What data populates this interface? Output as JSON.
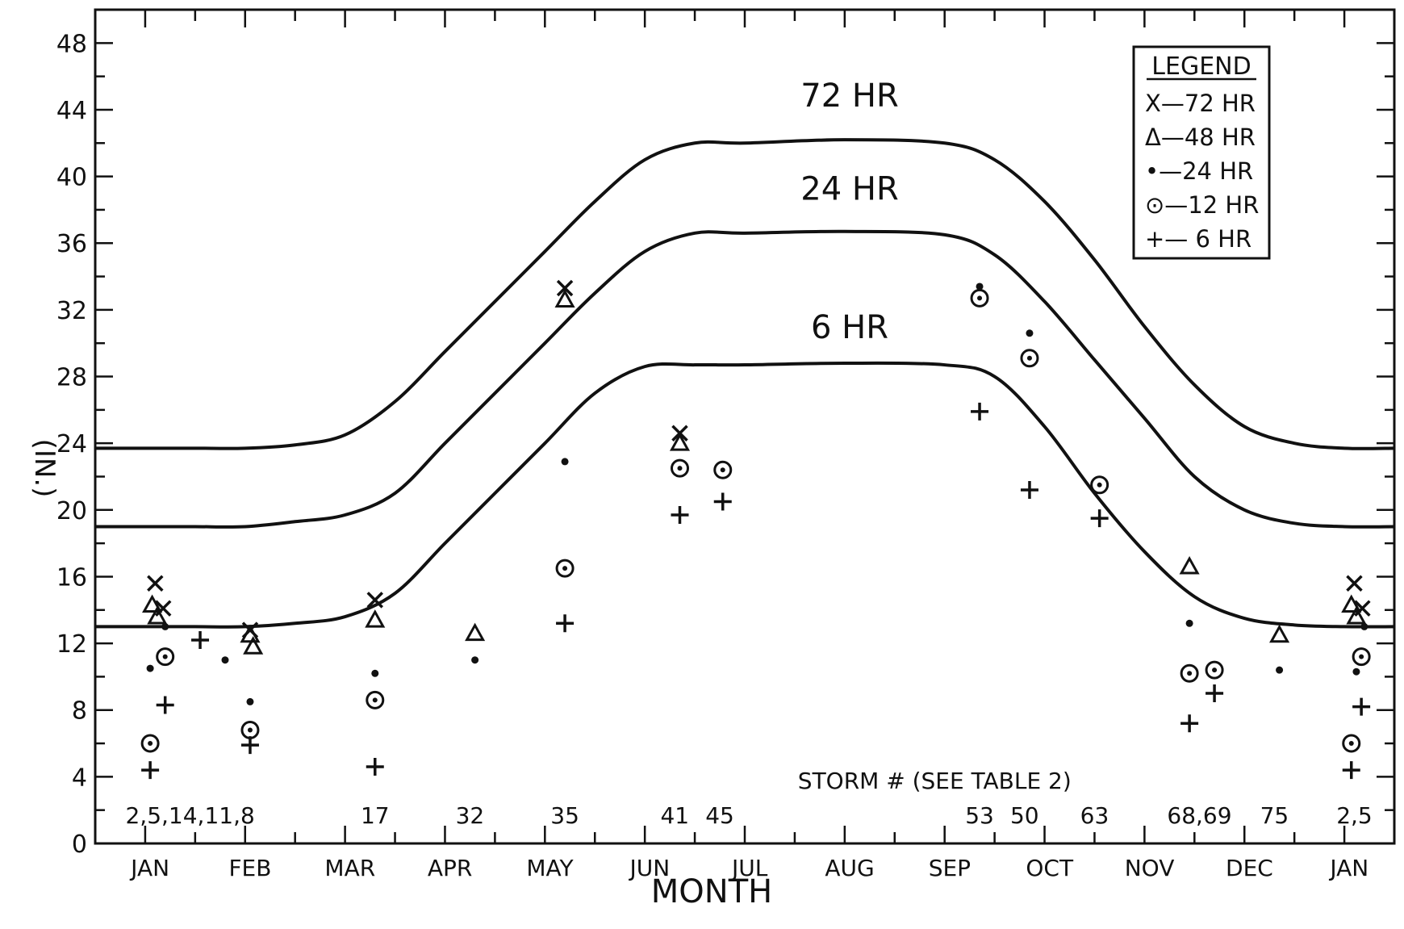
{
  "chart_data": {
    "type": "line",
    "xlabel": "MONTH",
    "ylabel": "(IN.)",
    "ylim": [
      0,
      50
    ],
    "yticks": [
      0,
      4,
      8,
      12,
      16,
      20,
      24,
      28,
      32,
      36,
      40,
      44,
      48
    ],
    "month_labels": [
      "JAN",
      "FEB",
      "MAR",
      "APR",
      "MAY",
      "JUN",
      "JUL",
      "AUG",
      "SEP",
      "OCT",
      "NOV",
      "DEC",
      "JAN"
    ],
    "note": "x values in months; 0.0 = start of January, 12.0 = start of following January",
    "xlim": [
      -0.5,
      12.5
    ],
    "curves": [
      {
        "name": "72 HR",
        "label": "72 HR",
        "x": [
          -0.5,
          0.0,
          0.5,
          1.0,
          1.5,
          2.0,
          2.5,
          3.0,
          3.5,
          4.0,
          4.5,
          5.0,
          5.5,
          6.0,
          7.0,
          8.0,
          8.5,
          9.0,
          9.5,
          10.0,
          10.5,
          11.0,
          11.5,
          12.0,
          12.5
        ],
        "y": [
          23.7,
          23.7,
          23.7,
          23.7,
          23.9,
          24.5,
          26.5,
          29.5,
          32.5,
          35.5,
          38.5,
          41.0,
          42.0,
          42.0,
          42.2,
          42.0,
          41.0,
          38.5,
          35.0,
          31.0,
          27.5,
          25.0,
          24.0,
          23.7,
          23.7
        ]
      },
      {
        "name": "24 HR",
        "label": "24 HR",
        "x": [
          -0.5,
          0.0,
          0.5,
          1.0,
          1.5,
          2.0,
          2.5,
          3.0,
          3.5,
          4.0,
          4.5,
          5.0,
          5.5,
          6.0,
          7.0,
          8.0,
          8.5,
          9.0,
          9.5,
          10.0,
          10.5,
          11.0,
          11.5,
          12.0,
          12.5
        ],
        "y": [
          19.0,
          19.0,
          19.0,
          19.0,
          19.3,
          19.7,
          21.0,
          24.0,
          27.0,
          30.0,
          33.0,
          35.5,
          36.6,
          36.6,
          36.7,
          36.5,
          35.3,
          32.5,
          29.0,
          25.5,
          22.0,
          20.0,
          19.2,
          19.0,
          19.0
        ]
      },
      {
        "name": "6 HR",
        "label": "6 HR",
        "x": [
          -0.5,
          0.0,
          0.5,
          1.0,
          1.5,
          2.0,
          2.5,
          3.0,
          3.5,
          4.0,
          4.5,
          5.0,
          5.5,
          6.0,
          7.0,
          8.0,
          8.5,
          9.0,
          9.5,
          10.0,
          10.5,
          11.0,
          11.5,
          12.0,
          12.5
        ],
        "y": [
          13.0,
          13.0,
          13.0,
          13.0,
          13.2,
          13.6,
          15.0,
          18.0,
          21.0,
          24.0,
          27.0,
          28.6,
          28.7,
          28.7,
          28.8,
          28.7,
          28.0,
          25.0,
          21.0,
          17.5,
          14.8,
          13.5,
          13.1,
          13.0,
          13.0
        ]
      }
    ],
    "points": [
      {
        "x": 0.1,
        "y": 15.6,
        "marker": "x"
      },
      {
        "x": 0.18,
        "y": 14.1,
        "marker": "x"
      },
      {
        "x": 0.07,
        "y": 14.3,
        "marker": "triangle"
      },
      {
        "x": 0.12,
        "y": 13.6,
        "marker": "triangle"
      },
      {
        "x": 0.2,
        "y": 13.0,
        "marker": "dot"
      },
      {
        "x": 0.05,
        "y": 10.5,
        "marker": "dot"
      },
      {
        "x": 0.2,
        "y": 11.2,
        "marker": "circle"
      },
      {
        "x": 0.05,
        "y": 6.0,
        "marker": "circle"
      },
      {
        "x": 0.2,
        "y": 8.3,
        "marker": "plus"
      },
      {
        "x": 0.05,
        "y": 4.4,
        "marker": "plus"
      },
      {
        "x": 0.55,
        "y": 12.2,
        "marker": "plus"
      },
      {
        "x": 0.8,
        "y": 11.0,
        "marker": "dot"
      },
      {
        "x": 1.05,
        "y": 12.8,
        "marker": "x"
      },
      {
        "x": 1.05,
        "y": 12.5,
        "marker": "triangle"
      },
      {
        "x": 1.08,
        "y": 11.8,
        "marker": "triangle"
      },
      {
        "x": 1.05,
        "y": 8.5,
        "marker": "dot"
      },
      {
        "x": 1.05,
        "y": 6.8,
        "marker": "circle"
      },
      {
        "x": 1.05,
        "y": 5.9,
        "marker": "plus"
      },
      {
        "x": 2.3,
        "y": 14.6,
        "marker": "x"
      },
      {
        "x": 2.3,
        "y": 13.4,
        "marker": "triangle"
      },
      {
        "x": 2.3,
        "y": 10.2,
        "marker": "dot"
      },
      {
        "x": 2.3,
        "y": 8.6,
        "marker": "circle"
      },
      {
        "x": 2.3,
        "y": 4.6,
        "marker": "plus"
      },
      {
        "x": 3.3,
        "y": 12.6,
        "marker": "triangle"
      },
      {
        "x": 3.3,
        "y": 11.0,
        "marker": "dot"
      },
      {
        "x": 4.2,
        "y": 33.3,
        "marker": "x"
      },
      {
        "x": 4.2,
        "y": 32.6,
        "marker": "triangle"
      },
      {
        "x": 4.2,
        "y": 22.9,
        "marker": "dot"
      },
      {
        "x": 4.2,
        "y": 16.5,
        "marker": "circle"
      },
      {
        "x": 4.2,
        "y": 13.2,
        "marker": "plus"
      },
      {
        "x": 5.35,
        "y": 24.6,
        "marker": "x"
      },
      {
        "x": 5.35,
        "y": 24.0,
        "marker": "triangle"
      },
      {
        "x": 5.35,
        "y": 22.5,
        "marker": "circle"
      },
      {
        "x": 5.35,
        "y": 19.7,
        "marker": "plus"
      },
      {
        "x": 5.78,
        "y": 22.4,
        "marker": "circle"
      },
      {
        "x": 5.78,
        "y": 20.5,
        "marker": "plus"
      },
      {
        "x": 8.35,
        "y": 33.4,
        "marker": "dot"
      },
      {
        "x": 8.35,
        "y": 32.7,
        "marker": "circle"
      },
      {
        "x": 8.35,
        "y": 25.9,
        "marker": "plus"
      },
      {
        "x": 8.85,
        "y": 30.6,
        "marker": "dot"
      },
      {
        "x": 8.85,
        "y": 29.1,
        "marker": "circle"
      },
      {
        "x": 8.85,
        "y": 21.2,
        "marker": "plus"
      },
      {
        "x": 9.55,
        "y": 21.5,
        "marker": "circle"
      },
      {
        "x": 9.55,
        "y": 19.5,
        "marker": "plus"
      },
      {
        "x": 10.45,
        "y": 16.6,
        "marker": "triangle"
      },
      {
        "x": 10.45,
        "y": 13.2,
        "marker": "dot"
      },
      {
        "x": 10.45,
        "y": 10.2,
        "marker": "circle"
      },
      {
        "x": 10.45,
        "y": 7.2,
        "marker": "plus"
      },
      {
        "x": 10.7,
        "y": 10.4,
        "marker": "circle"
      },
      {
        "x": 10.7,
        "y": 9.0,
        "marker": "plus"
      },
      {
        "x": 11.35,
        "y": 12.5,
        "marker": "triangle"
      },
      {
        "x": 11.35,
        "y": 10.4,
        "marker": "dot"
      },
      {
        "x": 12.1,
        "y": 15.6,
        "marker": "x"
      },
      {
        "x": 12.18,
        "y": 14.1,
        "marker": "x"
      },
      {
        "x": 12.07,
        "y": 14.3,
        "marker": "triangle"
      },
      {
        "x": 12.12,
        "y": 13.6,
        "marker": "triangle"
      },
      {
        "x": 12.2,
        "y": 13.0,
        "marker": "dot"
      },
      {
        "x": 12.12,
        "y": 10.3,
        "marker": "dot"
      },
      {
        "x": 12.17,
        "y": 11.2,
        "marker": "circle"
      },
      {
        "x": 12.07,
        "y": 6.0,
        "marker": "circle"
      },
      {
        "x": 12.17,
        "y": 8.2,
        "marker": "plus"
      },
      {
        "x": 12.07,
        "y": 4.4,
        "marker": "plus"
      }
    ],
    "storm_header": "STORM # (SEE TABLE 2)",
    "storm_labels": [
      {
        "x": 0.45,
        "text": "2,5,14,11,8"
      },
      {
        "x": 2.3,
        "text": "17"
      },
      {
        "x": 3.25,
        "text": "32"
      },
      {
        "x": 4.2,
        "text": "35"
      },
      {
        "x": 5.3,
        "text": "41"
      },
      {
        "x": 5.75,
        "text": "45"
      },
      {
        "x": 8.35,
        "text": "53"
      },
      {
        "x": 8.8,
        "text": "50"
      },
      {
        "x": 9.5,
        "text": "63"
      },
      {
        "x": 10.55,
        "text": "68,69"
      },
      {
        "x": 11.3,
        "text": "75"
      },
      {
        "x": 12.1,
        "text": "2,5"
      }
    ],
    "legend": {
      "title": "LEGEND",
      "position": "top-right",
      "items": [
        {
          "marker": "x",
          "label": "X—72 HR"
        },
        {
          "marker": "triangle",
          "label": "Δ—48 HR"
        },
        {
          "marker": "dot",
          "label": "•—24 HR"
        },
        {
          "marker": "circle",
          "label": "⊙—12 HR"
        },
        {
          "marker": "plus",
          "label": "+— 6 HR"
        }
      ]
    }
  }
}
